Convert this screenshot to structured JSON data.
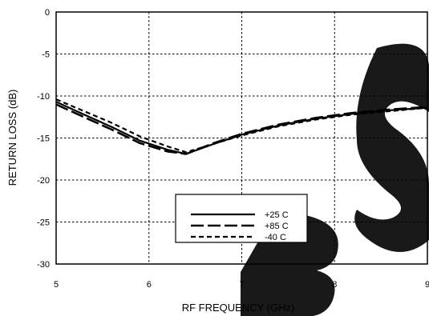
{
  "chart_data": {
    "type": "line",
    "title": "",
    "xlabel": "RF FREQUENCY (GHz)",
    "ylabel": "RETURN LOSS (dB)",
    "xlim": [
      5,
      9
    ],
    "ylim": [
      -30,
      0
    ],
    "xticks": [
      5,
      6,
      7,
      8,
      9
    ],
    "yticks": [
      0,
      -5,
      -10,
      -15,
      -20,
      -25,
      -30
    ],
    "grid": true,
    "legend_position": "bottom-center",
    "series": [
      {
        "name": "+25 C",
        "style": "solid",
        "x": [
          5.0,
          5.3,
          5.6,
          5.9,
          6.2,
          6.4,
          6.7,
          7.0,
          7.4,
          7.8,
          8.2,
          8.6,
          9.0
        ],
        "y": [
          -10.7,
          -12.2,
          -13.7,
          -15.3,
          -16.4,
          -16.9,
          -15.7,
          -14.6,
          -13.5,
          -12.7,
          -12.1,
          -11.7,
          -11.4
        ]
      },
      {
        "name": "+85 C",
        "style": "long-dash",
        "x": [
          5.0,
          5.3,
          5.6,
          5.9,
          6.2,
          6.4,
          6.7,
          7.0,
          7.4,
          7.8,
          8.2,
          8.6,
          9.0
        ],
        "y": [
          -11.0,
          -12.5,
          -14.0,
          -15.6,
          -16.6,
          -16.9,
          -15.6,
          -14.5,
          -13.4,
          -12.6,
          -12.0,
          -11.6,
          -11.3
        ]
      },
      {
        "name": "-40 C",
        "style": "short-dash",
        "x": [
          5.0,
          5.3,
          5.6,
          5.9,
          6.2,
          6.4,
          6.7,
          7.0,
          7.4,
          7.8,
          8.2,
          8.6,
          9.0
        ],
        "y": [
          -10.4,
          -11.8,
          -13.2,
          -14.8,
          -16.0,
          -16.7,
          -15.7,
          -14.7,
          -13.6,
          -12.8,
          -12.2,
          -11.8,
          -11.4
        ]
      }
    ]
  },
  "colors": {
    "line": "#000000",
    "background": "#ffffff",
    "watermark": "#000000"
  },
  "watermark_text": "BS"
}
